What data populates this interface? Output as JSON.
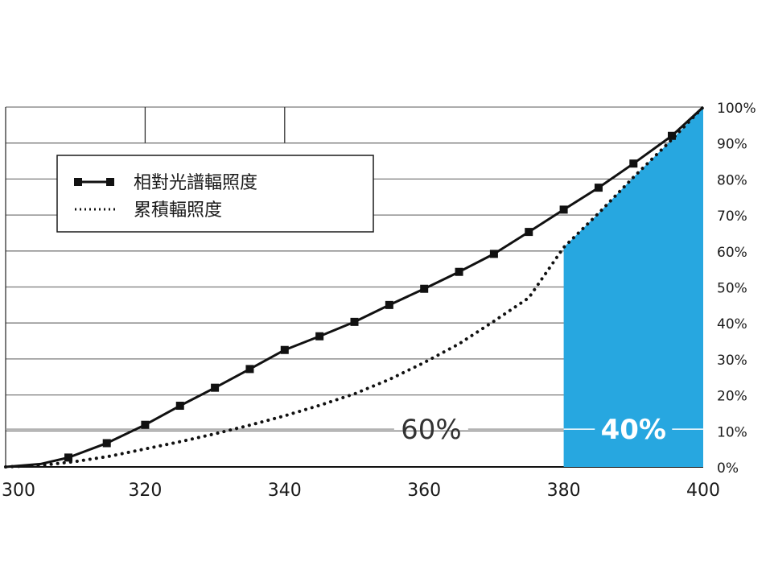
{
  "chart_data": {
    "type": "line",
    "xlim": [
      300,
      400
    ],
    "ylim": [
      0,
      100
    ],
    "y_unit": "%",
    "x_ticks": [
      "300",
      "320",
      "340",
      "360",
      "380",
      "400"
    ],
    "y_ticks": [
      "0%",
      "10%",
      "20%",
      "30%",
      "40%",
      "50%",
      "60%",
      "70%",
      "80%",
      "90%",
      "100%"
    ],
    "grid": true,
    "legend_position": "top-left",
    "legend": [
      "相對光譜輻照度",
      "累積輻照度"
    ],
    "series": [
      {
        "name": "相對光譜輻照度",
        "style": "solid-square-markers",
        "color": "#111111",
        "x": [
          300,
          305,
          309,
          314.5,
          320,
          325,
          330,
          335,
          340,
          345,
          350,
          355,
          360,
          365,
          370,
          375,
          380,
          385,
          390,
          395.5,
          400
        ],
        "y": [
          0,
          0.8,
          2.6,
          6.6,
          11.7,
          17,
          22,
          27.2,
          32.5,
          36.3,
          40.3,
          45,
          49.5,
          54.2,
          59.2,
          65.3,
          71.5,
          77.6,
          84.3,
          92,
          100
        ],
        "marker_x": [
          309,
          314.5,
          320,
          325,
          330,
          335,
          340,
          345,
          350,
          355,
          360,
          365,
          370,
          375,
          380,
          385,
          390,
          395.5
        ],
        "marker_y": [
          2.6,
          6.6,
          11.7,
          17,
          22,
          27.2,
          32.5,
          36.3,
          40.3,
          45,
          49.5,
          54.2,
          59.2,
          65.3,
          71.5,
          77.6,
          84.3,
          92
        ]
      },
      {
        "name": "累積輻照度",
        "style": "dotted",
        "color": "#111111",
        "x": [
          300,
          305,
          310,
          315,
          320,
          325,
          330,
          335,
          340,
          345,
          350,
          355,
          360,
          365,
          370,
          375,
          380,
          385,
          390,
          395,
          400
        ],
        "y": [
          0,
          0.4,
          1.5,
          3,
          5,
          7,
          9.2,
          11.6,
          14.2,
          17.1,
          20.3,
          24.3,
          29,
          34.2,
          40.5,
          47,
          61,
          70.5,
          80.5,
          90,
          100
        ]
      }
    ],
    "shaded_region": {
      "x_from": 380,
      "x_to": 400,
      "color": "#27a7e0",
      "boundary_y": [
        61,
        70.5,
        80.5,
        90,
        100
      ]
    },
    "annotations": [
      {
        "text": "60%",
        "x": 361,
        "y": 10.5,
        "color": "#333333"
      },
      {
        "text": "40%",
        "x": 390,
        "y": 10.5,
        "color": "#ffffff",
        "bold": true
      }
    ]
  }
}
